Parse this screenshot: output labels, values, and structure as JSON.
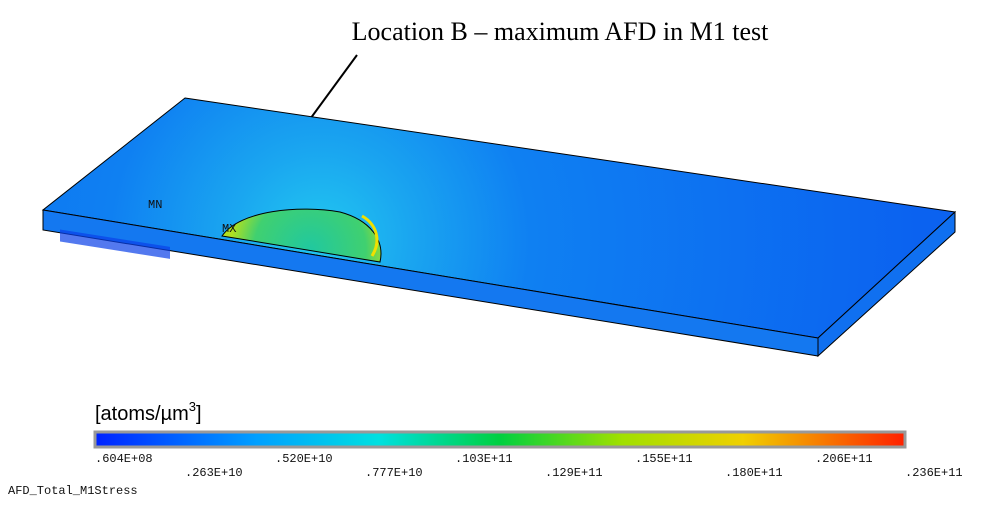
{
  "annotation": "Location B – maximum AFD in M1 test",
  "markers": {
    "min": "MN",
    "max": "MX"
  },
  "legend": {
    "unit": {
      "base": "[atoms/µm",
      "power": "3",
      "close": "]"
    },
    "ticks": [
      ".604E+08",
      ".263E+10",
      ".520E+10",
      ".777E+10",
      ".103E+11",
      ".129E+11",
      ".155E+11",
      ".180E+11",
      ".206E+11",
      ".236E+11"
    ]
  },
  "result_name": "AFD_Total_M1Stress"
}
